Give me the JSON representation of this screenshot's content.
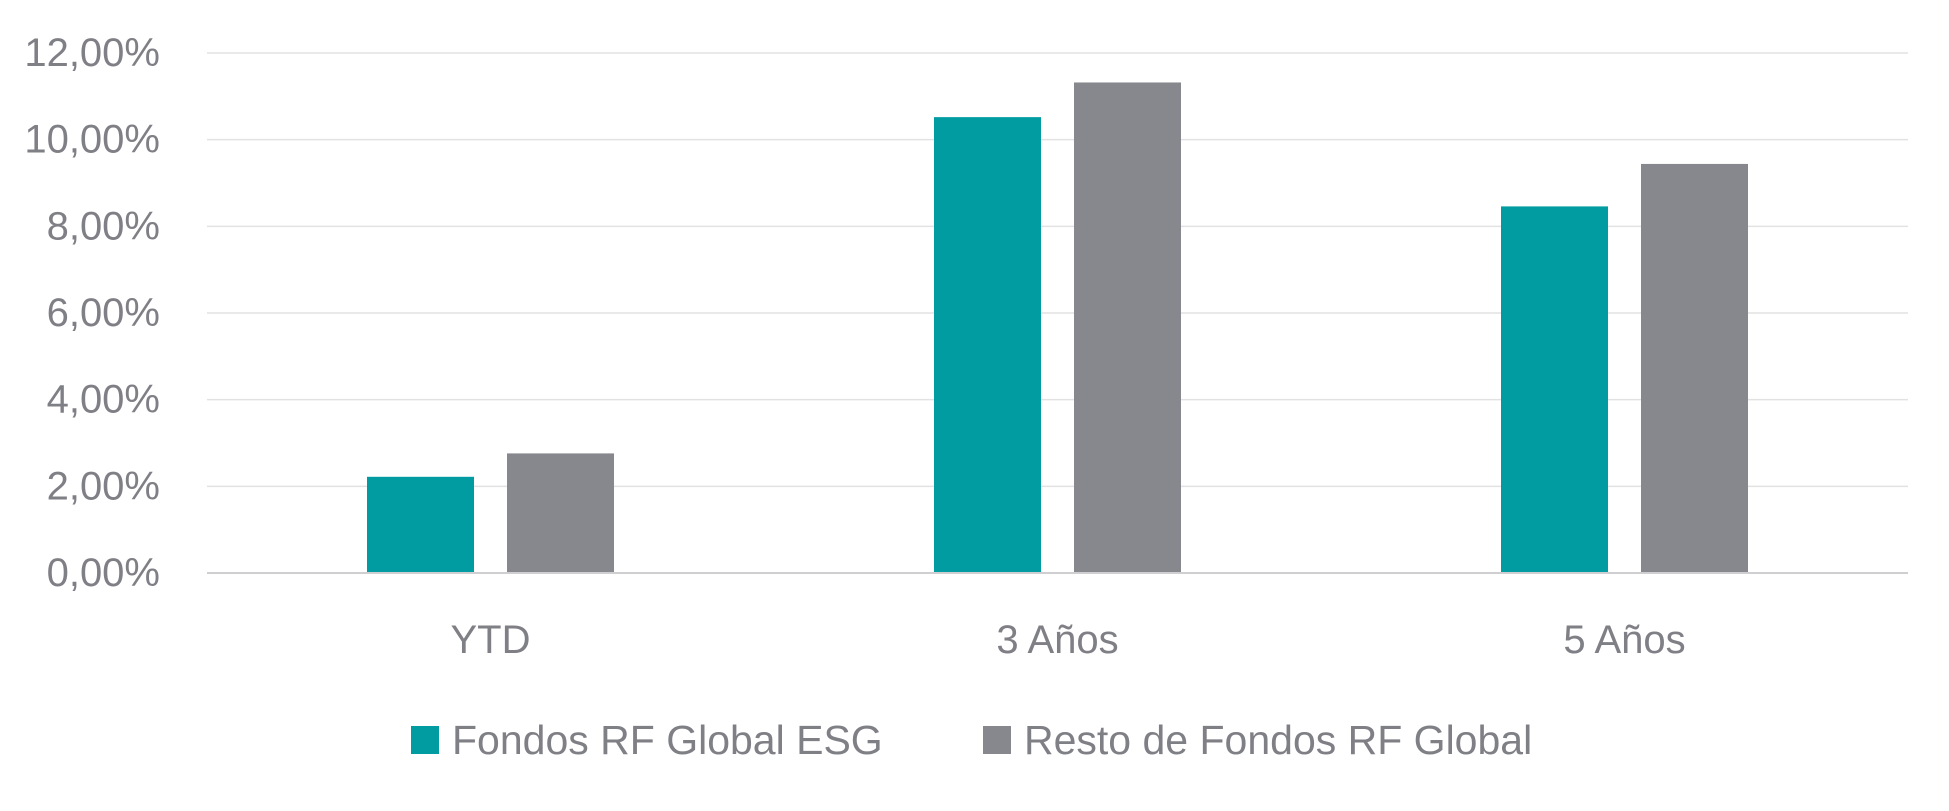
{
  "chart_data": {
    "type": "bar",
    "categories": [
      "YTD",
      "3 Años",
      "5 Años"
    ],
    "series": [
      {
        "name": "Fondos RF Global ESG",
        "color": "#009ca1",
        "values": [
          2.22,
          10.52,
          8.46
        ]
      },
      {
        "name": "Resto de Fondos RF Global",
        "color": "#87888e",
        "values": [
          2.76,
          11.32,
          9.44
        ]
      }
    ],
    "ylim": [
      0,
      12
    ],
    "yticks": [
      0,
      2,
      4,
      6,
      8,
      10,
      12
    ],
    "ytick_labels": [
      "0,00%",
      "2,00%",
      "4,00%",
      "6,00%",
      "8,00%",
      "10,00%",
      "12,00%"
    ],
    "grid": true,
    "legend_position": "bottom",
    "title": "",
    "xlabel": "",
    "ylabel": ""
  }
}
